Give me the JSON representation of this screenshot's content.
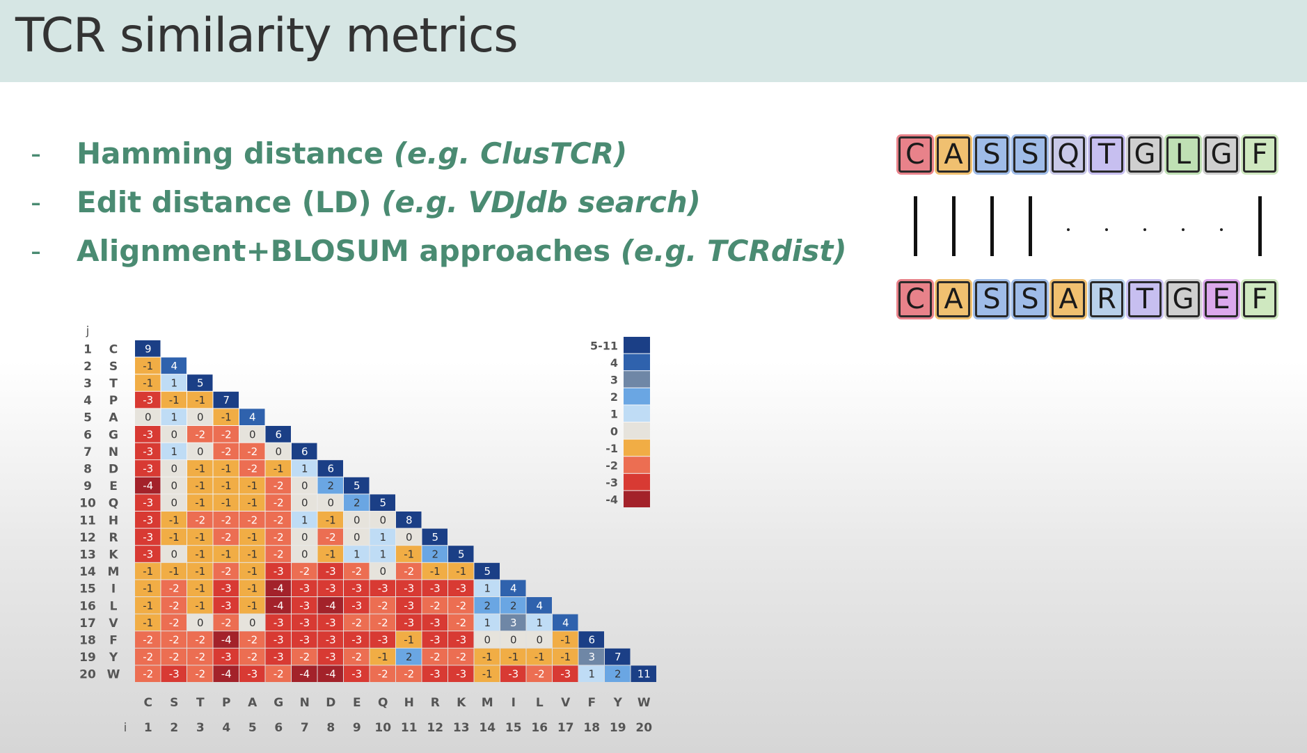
{
  "header": {
    "title": "TCR similarity metrics"
  },
  "bullets": [
    {
      "dash": "-",
      "main": "Hamming distance",
      "example": "(e.g. ClusTCR)"
    },
    {
      "dash": "-",
      "main": "Edit distance (LD)",
      "example": "(e.g. VDJdb search)"
    },
    {
      "dash": "-",
      "main": "Alignment+BLOSUM approaches",
      "example": "(e.g. TCRdist)"
    }
  ],
  "alignment": {
    "top": [
      "C",
      "A",
      "S",
      "S",
      "Q",
      "T",
      "G",
      "L",
      "G",
      "F"
    ],
    "bottom": [
      "C",
      "A",
      "S",
      "S",
      "A",
      "R",
      "T",
      "G",
      "E",
      "F"
    ],
    "match": [
      "bar",
      "bar",
      "bar",
      "bar",
      "dot",
      "dot",
      "dot",
      "dot",
      "dot",
      "bar"
    ],
    "top_colors": [
      "#e8828a",
      "#f0c070",
      "#9fbce8",
      "#9fbce8",
      "#c9c9e8",
      "#c7bff0",
      "#cfcfcf",
      "#bfe0b4",
      "#cfcfcf",
      "#cfe8c0"
    ],
    "bottom_colors": [
      "#e8828a",
      "#f0c070",
      "#9fbce8",
      "#9fbce8",
      "#f0c070",
      "#b8d0ea",
      "#c7bff0",
      "#cfcfcf",
      "#dba8ec",
      "#cfe8c0"
    ]
  },
  "chart_data": {
    "type": "heatmap",
    "row_axis_label": "j",
    "col_axis_label": "i",
    "amino_acids": [
      "C",
      "S",
      "T",
      "P",
      "A",
      "G",
      "N",
      "D",
      "E",
      "Q",
      "H",
      "R",
      "K",
      "M",
      "I",
      "L",
      "V",
      "F",
      "Y",
      "W"
    ],
    "indices": [
      "1",
      "2",
      "3",
      "4",
      "5",
      "6",
      "7",
      "8",
      "9",
      "10",
      "11",
      "12",
      "13",
      "14",
      "15",
      "16",
      "17",
      "18",
      "19",
      "20"
    ],
    "matrix": [
      [
        9
      ],
      [
        -1,
        4
      ],
      [
        -1,
        1,
        5
      ],
      [
        -3,
        -1,
        -1,
        7
      ],
      [
        0,
        1,
        0,
        -1,
        4
      ],
      [
        -3,
        0,
        -2,
        -2,
        0,
        6
      ],
      [
        -3,
        1,
        0,
        -2,
        -2,
        0,
        6
      ],
      [
        -3,
        0,
        -1,
        -1,
        -2,
        -1,
        1,
        6
      ],
      [
        -4,
        0,
        -1,
        -1,
        -1,
        -2,
        0,
        2,
        5
      ],
      [
        -3,
        0,
        -1,
        -1,
        -1,
        -2,
        0,
        0,
        2,
        5
      ],
      [
        -3,
        -1,
        -2,
        -2,
        -2,
        -2,
        1,
        -1,
        0,
        0,
        8
      ],
      [
        -3,
        -1,
        -1,
        -2,
        -1,
        -2,
        0,
        -2,
        0,
        1,
        0,
        5
      ],
      [
        -3,
        0,
        -1,
        -1,
        -1,
        -2,
        0,
        -1,
        1,
        1,
        -1,
        2,
        5
      ],
      [
        -1,
        -1,
        -1,
        -2,
        -1,
        -3,
        -2,
        -3,
        -2,
        0,
        -2,
        -1,
        -1,
        5
      ],
      [
        -1,
        -2,
        -1,
        -3,
        -1,
        -4,
        -3,
        -3,
        -3,
        -3,
        -3,
        -3,
        -3,
        1,
        4
      ],
      [
        -1,
        -2,
        -1,
        -3,
        -1,
        -4,
        -3,
        -4,
        -3,
        -2,
        -3,
        -2,
        -2,
        2,
        2,
        4
      ],
      [
        -1,
        -2,
        0,
        -2,
        0,
        -3,
        -3,
        -3,
        -2,
        -2,
        -3,
        -3,
        -2,
        1,
        3,
        1,
        4
      ],
      [
        -2,
        -2,
        -2,
        -4,
        -2,
        -3,
        -3,
        -3,
        -3,
        -3,
        -1,
        -3,
        -3,
        0,
        0,
        0,
        -1,
        6
      ],
      [
        -2,
        -2,
        -2,
        -3,
        -2,
        -3,
        -2,
        -3,
        -2,
        -1,
        2,
        -2,
        -2,
        -1,
        -1,
        -1,
        -1,
        3,
        7
      ],
      [
        -2,
        -3,
        -2,
        -4,
        -3,
        -2,
        -4,
        -4,
        -3,
        -2,
        -2,
        -3,
        -3,
        -1,
        -3,
        -2,
        -3,
        1,
        2,
        11
      ]
    ],
    "legend": {
      "labels": [
        "5-11",
        "4",
        "3",
        "2",
        "1",
        "0",
        "-1",
        "-2",
        "-3",
        "-4"
      ],
      "colors": [
        "#1b3f86",
        "#2f62ad",
        "#6f87a6",
        "#6aa6e3",
        "#bfdcf5",
        "#e6e3dc",
        "#f1ad45",
        "#ec6e52",
        "#d83a33",
        "#a3222a"
      ]
    }
  }
}
